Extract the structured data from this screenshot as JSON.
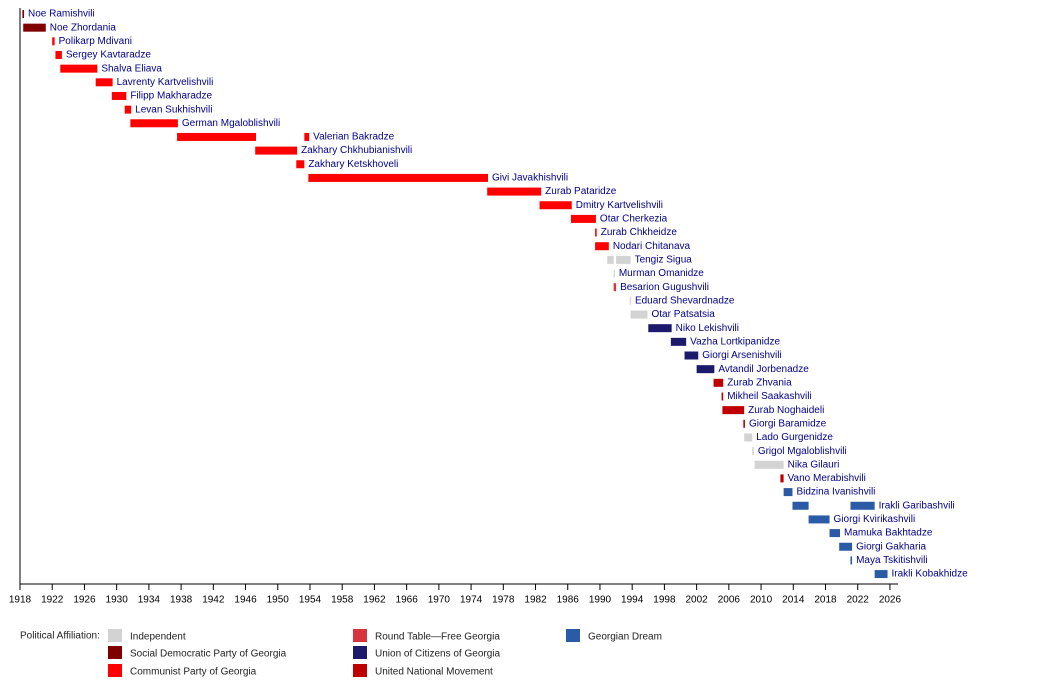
{
  "chart_data": {
    "type": "timeline",
    "xlim": [
      1918,
      2027
    ],
    "xticks": [
      1918,
      1922,
      1926,
      1930,
      1934,
      1938,
      1942,
      1946,
      1950,
      1954,
      1958,
      1962,
      1966,
      1970,
      1974,
      1978,
      1982,
      1986,
      1990,
      1994,
      1998,
      2002,
      2006,
      2010,
      2014,
      2018,
      2022,
      2026
    ],
    "legend_title": "Political Affiliation:",
    "series": [
      {
        "name": "Independent",
        "color": "#d3d3d3"
      },
      {
        "name": "Social Democratic Party of Georgia",
        "color": "#800000"
      },
      {
        "name": "Communist Party of Georgia",
        "color": "#ff0000"
      },
      {
        "name": "Round Table—Free Georgia",
        "color": "#d8333d"
      },
      {
        "name": "Union of Citizens of Georgia",
        "color": "#1b1a6b"
      },
      {
        "name": "United National Movement",
        "color": "#c00000"
      },
      {
        "name": "Georgian Dream",
        "color": "#2b5aa6"
      }
    ],
    "rows": [
      {
        "name": "Noe Ramishvili",
        "party": 1,
        "periods": [
          [
            1918.3,
            1918.5
          ]
        ]
      },
      {
        "name": "Noe Zhordania",
        "party": 1,
        "periods": [
          [
            1918.4,
            1921.2
          ]
        ]
      },
      {
        "name": "Polikarp Mdivani",
        "party": 2,
        "periods": [
          [
            1922.0,
            1922.3
          ]
        ]
      },
      {
        "name": "Sergey Kavtaradze",
        "party": 2,
        "periods": [
          [
            1922.4,
            1923.2
          ]
        ]
      },
      {
        "name": "Shalva Eliava",
        "party": 2,
        "periods": [
          [
            1923.0,
            1927.6
          ]
        ]
      },
      {
        "name": "Lavrenty Kartvelishvili",
        "party": 2,
        "periods": [
          [
            1927.4,
            1929.5
          ]
        ]
      },
      {
        "name": "Filipp Makharadze",
        "party": 2,
        "periods": [
          [
            1929.4,
            1931.2
          ]
        ]
      },
      {
        "name": "Levan Sukhishvili",
        "party": 2,
        "periods": [
          [
            1931.0,
            1931.8
          ]
        ]
      },
      {
        "name": "German Mgaloblishvili",
        "party": 2,
        "periods": [
          [
            1931.7,
            1937.6
          ]
        ]
      },
      {
        "name": "Valerian Bakradze",
        "party": 2,
        "periods": [
          [
            1937.5,
            1947.3
          ],
          [
            1953.3,
            1953.9
          ]
        ]
      },
      {
        "name": "Zakhary Chkhubianishvili",
        "party": 2,
        "periods": [
          [
            1947.2,
            1952.4
          ]
        ]
      },
      {
        "name": "Zakhary Ketskhoveli",
        "party": 2,
        "periods": [
          [
            1952.3,
            1953.3
          ]
        ]
      },
      {
        "name": "Givi Javakhishvili",
        "party": 2,
        "periods": [
          [
            1953.8,
            1976.1
          ]
        ]
      },
      {
        "name": "Zurab Pataridze",
        "party": 2,
        "periods": [
          [
            1976.0,
            1982.7
          ]
        ]
      },
      {
        "name": "Dmitry Kartvelishvili",
        "party": 2,
        "periods": [
          [
            1982.5,
            1986.5
          ]
        ]
      },
      {
        "name": "Otar Cherkezia",
        "party": 2,
        "periods": [
          [
            1986.4,
            1989.5
          ]
        ]
      },
      {
        "name": "Zurab Chkheidze",
        "party": 2,
        "periods": [
          [
            1989.4,
            1989.6
          ]
        ]
      },
      {
        "name": "Nodari Chitanava",
        "party": 2,
        "periods": [
          [
            1989.4,
            1991.1
          ]
        ]
      },
      {
        "name": "Tengiz Sigua",
        "party": 0,
        "periods": [
          [
            1990.9,
            1991.7
          ],
          [
            1992.0,
            1993.8
          ]
        ]
      },
      {
        "name": "Murman Omanidze",
        "party": 0,
        "periods": [
          [
            1991.7,
            1991.8
          ]
        ]
      },
      {
        "name": "Besarion Gugushvili",
        "party": 3,
        "periods": [
          [
            1991.7,
            1992.0
          ]
        ]
      },
      {
        "name": "Eduard Shevardnadze",
        "party": 0,
        "periods": [
          [
            1993.7,
            1993.8
          ]
        ]
      },
      {
        "name": "Otar Patsatsia",
        "party": 0,
        "periods": [
          [
            1993.8,
            1995.9
          ]
        ]
      },
      {
        "name": "Niko Lekishvili",
        "party": 4,
        "periods": [
          [
            1996.0,
            1998.9
          ]
        ]
      },
      {
        "name": "Vazha Lortkipanidze",
        "party": 4,
        "periods": [
          [
            1998.8,
            2000.7
          ]
        ]
      },
      {
        "name": "Giorgi Arsenishvili",
        "party": 4,
        "periods": [
          [
            2000.5,
            2002.2
          ]
        ]
      },
      {
        "name": "Avtandil Jorbenadze",
        "party": 4,
        "periods": [
          [
            2002.0,
            2004.2
          ]
        ]
      },
      {
        "name": "Zurab Zhvania",
        "party": 5,
        "periods": [
          [
            2004.1,
            2005.3
          ]
        ]
      },
      {
        "name": "Mikheil Saakashvili",
        "party": 5,
        "periods": [
          [
            2005.1,
            2005.3
          ]
        ]
      },
      {
        "name": "Zurab Noghaideli",
        "party": 5,
        "periods": [
          [
            2005.2,
            2007.9
          ]
        ]
      },
      {
        "name": "Giorgi Baramidze",
        "party": 5,
        "periods": [
          [
            2007.8,
            2008.0
          ]
        ]
      },
      {
        "name": "Lado Gurgenidze",
        "party": 0,
        "periods": [
          [
            2007.9,
            2008.9
          ]
        ]
      },
      {
        "name": "Grigol Mgaloblishvili",
        "party": 0,
        "periods": [
          [
            2008.9,
            2009.1
          ]
        ]
      },
      {
        "name": "Nika Gilauri",
        "party": 0,
        "periods": [
          [
            2009.2,
            2012.8
          ]
        ]
      },
      {
        "name": "Vano Merabishvili",
        "party": 5,
        "periods": [
          [
            2012.4,
            2012.8
          ]
        ]
      },
      {
        "name": "Bidzina Ivanishvili",
        "party": 6,
        "periods": [
          [
            2012.8,
            2013.9
          ]
        ]
      },
      {
        "name": "Irakli Garibashvili",
        "party": 6,
        "periods": [
          [
            2013.9,
            2015.9
          ],
          [
            2021.1,
            2024.1
          ]
        ]
      },
      {
        "name": "Giorgi Kvirikashvili",
        "party": 6,
        "periods": [
          [
            2015.9,
            2018.5
          ]
        ]
      },
      {
        "name": "Mamuka Bakhtadze",
        "party": 6,
        "periods": [
          [
            2018.5,
            2019.8
          ]
        ]
      },
      {
        "name": "Giorgi Gakharia",
        "party": 6,
        "periods": [
          [
            2019.7,
            2021.3
          ]
        ]
      },
      {
        "name": "Maya Tskitishvili",
        "party": 6,
        "periods": [
          [
            2021.1,
            2021.3
          ]
        ]
      },
      {
        "name": "Irakli Kobakhidze",
        "party": 6,
        "periods": [
          [
            2024.1,
            2025.7
          ]
        ]
      }
    ]
  }
}
